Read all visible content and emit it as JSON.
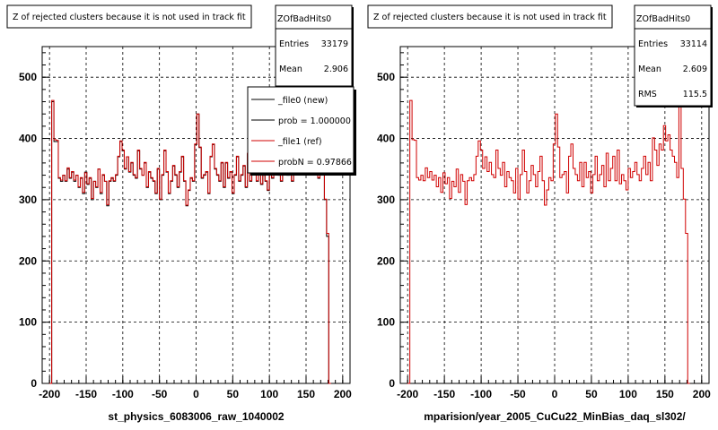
{
  "chart_data": [
    {
      "type": "histogram",
      "title": "Z of rejected clusters  because it is not used in track fit",
      "xlabel": "st_physics_6083006_raw_1040002",
      "ylabel": "",
      "xlim": [
        -210,
        210
      ],
      "ylim": [
        0,
        550
      ],
      "grid": true,
      "x_ticks": [
        "-200",
        "-150",
        "-100",
        "-50",
        "0",
        "50",
        "100",
        "150",
        "200"
      ],
      "y_ticks": [
        "0",
        "100",
        "200",
        "300",
        "400",
        "500"
      ],
      "stats": {
        "name": "ZOfBadHits0",
        "rows": [
          {
            "label": "Entries",
            "value": "33179"
          },
          {
            "label": "Mean",
            "value": "2.906"
          }
        ]
      },
      "legend": {
        "placement": "top-right",
        "entries": [
          {
            "label": "_file0 (new)",
            "color": "#000000"
          },
          {
            "label": "prob = 1.000000",
            "color": "#000000"
          },
          {
            "label": "_file1 (ref)",
            "color": "#d00000"
          },
          {
            "label": "probN = 0.97866",
            "color": "#d00000"
          }
        ]
      },
      "series": [
        {
          "color": "#000000",
          "bin_edges": [
            -200,
            200
          ],
          "bin_width": 3,
          "values": [
            0,
            460,
            395,
            395,
            335,
            330,
            340,
            330,
            350,
            335,
            345,
            330,
            340,
            320,
            335,
            310,
            345,
            325,
            335,
            300,
            330,
            320,
            350,
            310,
            340,
            330,
            290,
            330,
            335,
            330,
            340,
            370,
            395,
            380,
            350,
            370,
            345,
            360,
            340,
            335,
            380,
            350,
            340,
            360,
            320,
            345,
            335,
            330,
            310,
            350,
            300,
            340,
            380,
            345,
            310,
            330,
            355,
            340,
            320,
            345,
            370,
            330,
            290,
            315,
            335,
            330,
            390,
            440,
            385,
            335,
            340,
            345,
            310,
            370,
            390,
            350,
            340,
            330,
            360,
            320,
            360,
            335,
            345,
            310,
            340,
            370,
            330,
            340,
            355,
            320,
            375,
            330,
            350,
            370,
            330,
            380,
            325,
            340,
            330,
            315,
            350,
            335,
            345,
            360,
            340,
            330,
            350,
            370,
            340,
            360,
            330,
            400,
            380,
            355,
            390,
            380,
            420,
            395,
            405,
            380,
            370,
            360,
            335,
            480,
            350,
            300,
            240,
            0
          ]
        },
        {
          "color": "#d00000",
          "bin_edges": [
            -200,
            200
          ],
          "bin_width": 3,
          "values": [
            0,
            462,
            398,
            397,
            336,
            332,
            340,
            331,
            352,
            336,
            346,
            332,
            340,
            321,
            336,
            312,
            344,
            326,
            336,
            302,
            330,
            321,
            350,
            312,
            341,
            330,
            292,
            331,
            336,
            331,
            341,
            371,
            396,
            381,
            351,
            370,
            346,
            361,
            341,
            336,
            381,
            351,
            340,
            361,
            321,
            346,
            336,
            331,
            311,
            351,
            301,
            341,
            381,
            346,
            311,
            331,
            356,
            341,
            321,
            346,
            371,
            331,
            291,
            316,
            336,
            331,
            391,
            440,
            386,
            336,
            341,
            346,
            311,
            371,
            391,
            351,
            341,
            331,
            361,
            321,
            361,
            336,
            346,
            311,
            341,
            371,
            331,
            341,
            356,
            321,
            376,
            331,
            351,
            371,
            331,
            381,
            326,
            341,
            331,
            316,
            351,
            336,
            346,
            361,
            341,
            331,
            351,
            371,
            341,
            361,
            331,
            401,
            381,
            356,
            391,
            381,
            421,
            396,
            406,
            381,
            371,
            361,
            336,
            480,
            351,
            301,
            245,
            0
          ]
        }
      ]
    },
    {
      "type": "histogram",
      "title": "Z of rejected clusters  because it is not used in track fit",
      "xlabel": "mparision/year_2005_CuCu22_MinBias_daq_sl302/",
      "ylabel": "",
      "xlim": [
        -210,
        210
      ],
      "ylim": [
        0,
        550
      ],
      "grid": true,
      "x_ticks": [
        "-200",
        "-150",
        "-100",
        "-50",
        "0",
        "50",
        "100",
        "150",
        "200"
      ],
      "y_ticks": [
        "0",
        "100",
        "200",
        "300",
        "400",
        "500"
      ],
      "stats": {
        "name": "ZOfBadHits0",
        "rows": [
          {
            "label": "Entries",
            "value": "33114"
          },
          {
            "label": "Mean",
            "value": "2.609"
          },
          {
            "label": "RMS",
            "value": "115.5"
          }
        ]
      },
      "series": [
        {
          "color": "#d00000",
          "bin_edges": [
            -200,
            200
          ],
          "bin_width": 3,
          "values": [
            0,
            462,
            398,
            397,
            336,
            332,
            340,
            331,
            352,
            336,
            346,
            332,
            340,
            321,
            336,
            312,
            344,
            326,
            336,
            302,
            330,
            321,
            350,
            312,
            341,
            330,
            292,
            331,
            336,
            331,
            341,
            371,
            396,
            381,
            351,
            370,
            346,
            361,
            341,
            336,
            381,
            351,
            340,
            361,
            321,
            346,
            336,
            331,
            311,
            351,
            301,
            341,
            381,
            346,
            311,
            331,
            356,
            341,
            321,
            346,
            371,
            331,
            291,
            316,
            336,
            331,
            391,
            440,
            386,
            336,
            341,
            346,
            311,
            371,
            391,
            351,
            341,
            331,
            361,
            321,
            361,
            336,
            346,
            311,
            341,
            371,
            331,
            341,
            356,
            321,
            376,
            331,
            351,
            371,
            331,
            381,
            326,
            341,
            331,
            316,
            351,
            336,
            346,
            361,
            341,
            331,
            351,
            371,
            341,
            361,
            331,
            401,
            381,
            356,
            391,
            381,
            421,
            396,
            406,
            381,
            371,
            361,
            336,
            480,
            351,
            301,
            245,
            0
          ]
        }
      ]
    }
  ]
}
